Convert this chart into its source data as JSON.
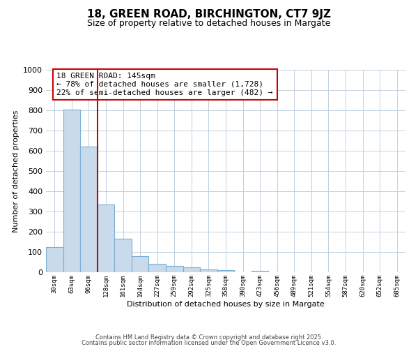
{
  "title1": "18, GREEN ROAD, BIRCHINGTON, CT7 9JZ",
  "title2": "Size of property relative to detached houses in Margate",
  "xlabel": "Distribution of detached houses by size in Margate",
  "ylabel": "Number of detached properties",
  "categories": [
    "30sqm",
    "63sqm",
    "96sqm",
    "128sqm",
    "161sqm",
    "194sqm",
    "227sqm",
    "259sqm",
    "292sqm",
    "325sqm",
    "358sqm",
    "390sqm",
    "423sqm",
    "456sqm",
    "489sqm",
    "521sqm",
    "554sqm",
    "587sqm",
    "620sqm",
    "652sqm",
    "685sqm"
  ],
  "values": [
    125,
    805,
    620,
    335,
    165,
    80,
    40,
    30,
    25,
    15,
    10,
    0,
    8,
    0,
    0,
    0,
    0,
    0,
    0,
    0,
    0
  ],
  "bar_color": "#c9daea",
  "bar_edge_color": "#7bafd4",
  "bar_linewidth": 0.8,
  "red_line_index": 3,
  "red_line_color": "#cc0000",
  "annotation_text": "18 GREEN ROAD: 145sqm\n← 78% of detached houses are smaller (1,728)\n22% of semi-detached houses are larger (482) →",
  "annotation_box_color": "#cc0000",
  "ylim": [
    0,
    1000
  ],
  "yticks": [
    0,
    100,
    200,
    300,
    400,
    500,
    600,
    700,
    800,
    900,
    1000
  ],
  "grid_color": "#c0d0e0",
  "bg_color": "#ffffff",
  "footer1": "Contains HM Land Registry data © Crown copyright and database right 2025.",
  "footer2": "Contains public sector information licensed under the Open Government Licence v3.0."
}
